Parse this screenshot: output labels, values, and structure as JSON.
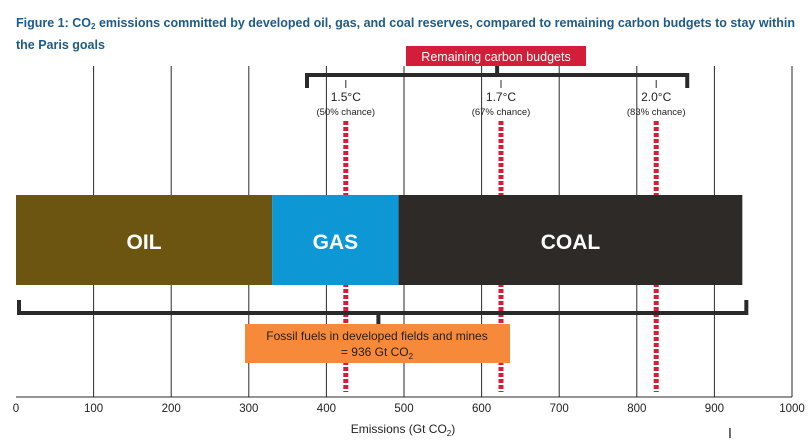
{
  "figure": {
    "title_prefix": "Figure 1: CO",
    "title_sub": "2",
    "title_rest": " emissions committed by developed oil, gas, and coal reserves, compared to remaining carbon budgets to stay within the Paris goals"
  },
  "chart_data": {
    "type": "bar",
    "orientation": "horizontal-stacked",
    "xlim": [
      0,
      1000
    ],
    "x_ticks": [
      0,
      100,
      200,
      300,
      400,
      500,
      600,
      700,
      800,
      900,
      1000
    ],
    "xlabel_prefix": "Emissions (Gt CO",
    "xlabel_sub": "2",
    "xlabel_suffix": ")",
    "grid": "vertical",
    "segments": [
      {
        "label": "OIL",
        "start": 0,
        "end": 330,
        "color": "#6b5510"
      },
      {
        "label": "GAS",
        "start": 330,
        "end": 493,
        "color": "#0d97d5"
      },
      {
        "label": "COAL",
        "start": 493,
        "end": 936,
        "color": "#2e2a28"
      }
    ],
    "budget_lines": [
      {
        "temp": "1.5°C",
        "chance": "(50% chance)",
        "value": 425,
        "color": "#d41d38"
      },
      {
        "temp": "1.7°C",
        "chance": "(67% chance)",
        "value": 625,
        "color": "#d41d38"
      },
      {
        "temp": "2.0°C",
        "chance": "(83% chance)",
        "value": 825,
        "color": "#d41d38"
      }
    ],
    "budgets_bracket": {
      "label": "Remaining carbon budgets",
      "start": 375,
      "end": 865,
      "label_bg": "#d41d38"
    },
    "fossil_bracket": {
      "label_line1": "Fossil fuels in developed fields and mines",
      "label_line2_prefix": "= 936 Gt CO",
      "label_line2_sub": "2",
      "start": 0,
      "end": 936,
      "label_bg": "#f7893b"
    }
  }
}
